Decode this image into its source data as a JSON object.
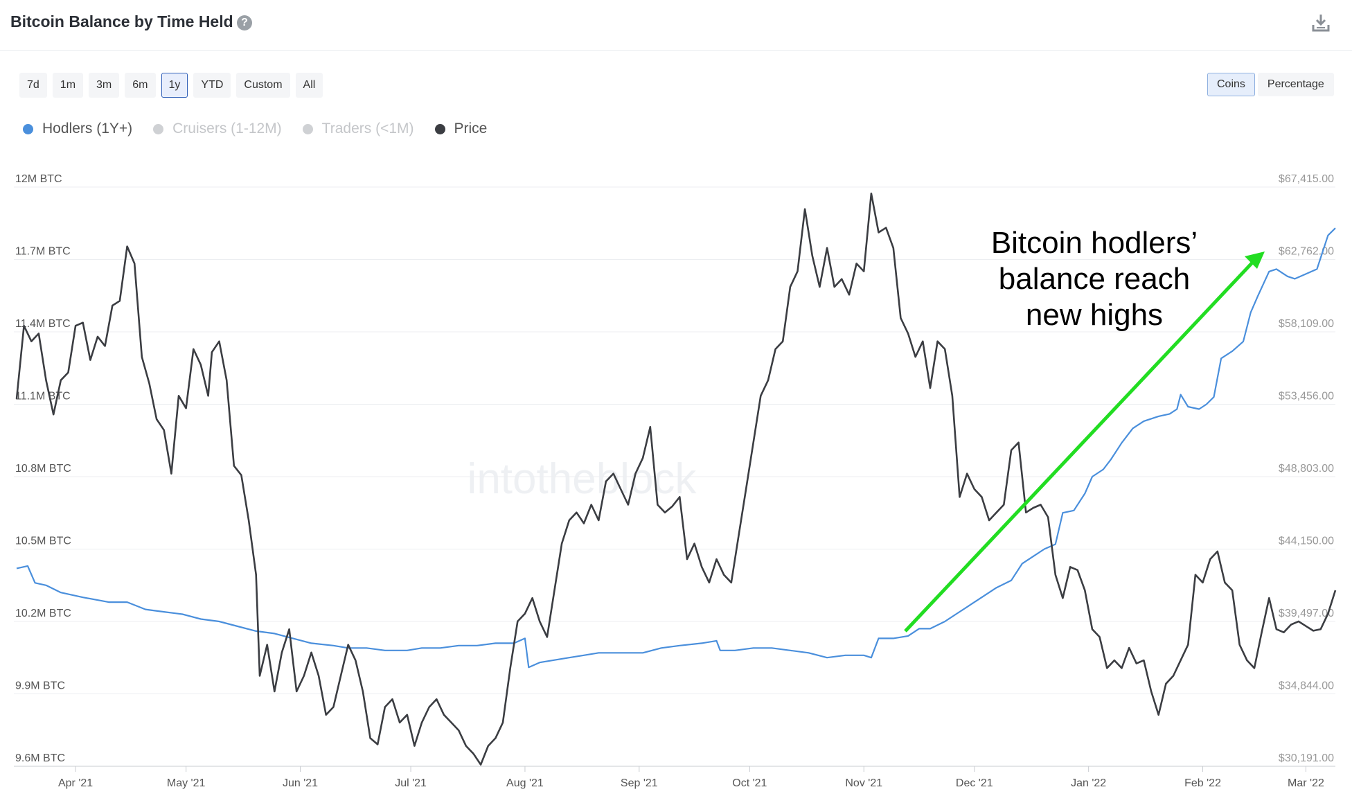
{
  "header": {
    "title": "Bitcoin Balance by Time Held",
    "help_icon": "question-circle-icon",
    "download_icon": "download-icon"
  },
  "ranges": [
    {
      "label": "7d",
      "active": false
    },
    {
      "label": "1m",
      "active": false
    },
    {
      "label": "3m",
      "active": false
    },
    {
      "label": "6m",
      "active": false
    },
    {
      "label": "1y",
      "active": true
    },
    {
      "label": "YTD",
      "active": false
    },
    {
      "label": "Custom",
      "active": false
    },
    {
      "label": "All",
      "active": false
    }
  ],
  "units": [
    {
      "label": "Coins",
      "active": true
    },
    {
      "label": "Percentage",
      "active": false
    }
  ],
  "legend": [
    {
      "label": "Hodlers (1Y+)",
      "color": "#4a8fdc",
      "active": true
    },
    {
      "label": "Cruisers (1-12M)",
      "color": "#cfd1d4",
      "active": false
    },
    {
      "label": "Traders (<1M)",
      "color": "#cfd1d4",
      "active": false
    },
    {
      "label": "Price",
      "color": "#3b3d42",
      "active": true
    }
  ],
  "watermark": "intotheblock",
  "chart_data": {
    "type": "line",
    "title": "Bitcoin Balance by Time Held",
    "left_axis": {
      "ticks": [
        "12M BTC",
        "11.7M BTC",
        "11.4M BTC",
        "11.1M BTC",
        "10.8M BTC",
        "10.5M BTC",
        "10.2M BTC",
        "9.9M BTC",
        "9.6M BTC"
      ],
      "range": [
        9.6,
        12.0
      ],
      "unit": "M BTC"
    },
    "right_axis": {
      "ticks": [
        "$67,415.00",
        "$62,762.00",
        "$58,109.00",
        "$53,456.00",
        "$48,803.00",
        "$44,150.00",
        "$39,497.00",
        "$34,844.00",
        "$30,191.00"
      ],
      "range": [
        30191,
        67415
      ]
    },
    "x_axis": {
      "ticks": [
        "Apr '21",
        "May '21",
        "Jun '21",
        "Jul '21",
        "Aug '21",
        "Sep '21",
        "Oct '21",
        "Nov '21",
        "Dec '21",
        "Jan '22",
        "Feb '22",
        "Mar '22"
      ],
      "tick_days": [
        16,
        46,
        77,
        107,
        138,
        169,
        199,
        230,
        260,
        291,
        322,
        350
      ],
      "start_date": "2021-03-16",
      "end_date": "2022-03-16"
    },
    "grid": true,
    "annotation": {
      "lines": [
        "Bitcoin hodlers’",
        "balance reach",
        "new highs"
      ],
      "arrow_color": "#22dd22"
    },
    "series": [
      {
        "name": "Hodlers (1Y+)",
        "axis": "left",
        "color": "#4a8fdc",
        "points": [
          [
            0,
            10.42
          ],
          [
            3,
            10.43
          ],
          [
            5,
            10.36
          ],
          [
            8,
            10.35
          ],
          [
            12,
            10.32
          ],
          [
            18,
            10.3
          ],
          [
            25,
            10.28
          ],
          [
            30,
            10.28
          ],
          [
            35,
            10.25
          ],
          [
            40,
            10.24
          ],
          [
            45,
            10.23
          ],
          [
            50,
            10.21
          ],
          [
            55,
            10.2
          ],
          [
            60,
            10.18
          ],
          [
            65,
            10.16
          ],
          [
            70,
            10.15
          ],
          [
            75,
            10.13
          ],
          [
            80,
            10.11
          ],
          [
            86,
            10.1
          ],
          [
            90,
            10.09
          ],
          [
            95,
            10.09
          ],
          [
            100,
            10.08
          ],
          [
            106,
            10.08
          ],
          [
            110,
            10.09
          ],
          [
            115,
            10.09
          ],
          [
            120,
            10.1
          ],
          [
            125,
            10.1
          ],
          [
            130,
            10.11
          ],
          [
            135,
            10.11
          ],
          [
            138,
            10.13
          ],
          [
            139,
            10.01
          ],
          [
            142,
            10.03
          ],
          [
            146,
            10.04
          ],
          [
            150,
            10.05
          ],
          [
            154,
            10.06
          ],
          [
            158,
            10.07
          ],
          [
            162,
            10.07
          ],
          [
            166,
            10.07
          ],
          [
            170,
            10.07
          ],
          [
            175,
            10.09
          ],
          [
            180,
            10.1
          ],
          [
            186,
            10.11
          ],
          [
            190,
            10.12
          ],
          [
            191,
            10.08
          ],
          [
            195,
            10.08
          ],
          [
            200,
            10.09
          ],
          [
            205,
            10.09
          ],
          [
            210,
            10.08
          ],
          [
            215,
            10.07
          ],
          [
            220,
            10.05
          ],
          [
            225,
            10.06
          ],
          [
            230,
            10.06
          ],
          [
            232,
            10.05
          ],
          [
            234,
            10.13
          ],
          [
            238,
            10.13
          ],
          [
            242,
            10.14
          ],
          [
            245,
            10.17
          ],
          [
            248,
            10.17
          ],
          [
            252,
            10.2
          ],
          [
            255,
            10.23
          ],
          [
            259,
            10.27
          ],
          [
            262,
            10.3
          ],
          [
            266,
            10.34
          ],
          [
            270,
            10.37
          ],
          [
            273,
            10.44
          ],
          [
            276,
            10.47
          ],
          [
            279,
            10.5
          ],
          [
            282,
            10.52
          ],
          [
            284,
            10.65
          ],
          [
            287,
            10.66
          ],
          [
            290,
            10.73
          ],
          [
            292,
            10.8
          ],
          [
            295,
            10.83
          ],
          [
            297,
            10.87
          ],
          [
            300,
            10.94
          ],
          [
            303,
            11.0
          ],
          [
            306,
            11.03
          ],
          [
            310,
            11.05
          ],
          [
            313,
            11.06
          ],
          [
            315,
            11.08
          ],
          [
            316,
            11.14
          ],
          [
            318,
            11.09
          ],
          [
            321,
            11.08
          ],
          [
            323,
            11.1
          ],
          [
            325,
            11.13
          ],
          [
            327,
            11.29
          ],
          [
            330,
            11.32
          ],
          [
            333,
            11.36
          ],
          [
            335,
            11.48
          ],
          [
            337,
            11.55
          ],
          [
            340,
            11.65
          ],
          [
            342,
            11.66
          ],
          [
            345,
            11.63
          ],
          [
            347,
            11.62
          ],
          [
            350,
            11.64
          ],
          [
            353,
            11.66
          ],
          [
            356,
            11.8
          ],
          [
            358,
            11.83
          ]
        ]
      },
      {
        "name": "Price",
        "axis": "right",
        "color": "#3b3d42",
        "points": [
          [
            0,
            53800
          ],
          [
            2,
            58500
          ],
          [
            4,
            57500
          ],
          [
            6,
            58000
          ],
          [
            8,
            55000
          ],
          [
            10,
            52800
          ],
          [
            12,
            55000
          ],
          [
            14,
            55500
          ],
          [
            16,
            58500
          ],
          [
            18,
            58700
          ],
          [
            20,
            56300
          ],
          [
            22,
            57800
          ],
          [
            24,
            57200
          ],
          [
            26,
            59800
          ],
          [
            28,
            60100
          ],
          [
            30,
            63600
          ],
          [
            32,
            62500
          ],
          [
            34,
            56500
          ],
          [
            36,
            54800
          ],
          [
            38,
            52500
          ],
          [
            40,
            51800
          ],
          [
            42,
            49000
          ],
          [
            44,
            54000
          ],
          [
            46,
            53200
          ],
          [
            48,
            57000
          ],
          [
            50,
            56000
          ],
          [
            52,
            54000
          ],
          [
            53,
            56800
          ],
          [
            55,
            57500
          ],
          [
            57,
            55000
          ],
          [
            59,
            49500
          ],
          [
            61,
            48900
          ],
          [
            63,
            46000
          ],
          [
            65,
            42500
          ],
          [
            66,
            36000
          ],
          [
            68,
            38000
          ],
          [
            70,
            35000
          ],
          [
            72,
            37500
          ],
          [
            74,
            39000
          ],
          [
            76,
            35000
          ],
          [
            78,
            36000
          ],
          [
            80,
            37500
          ],
          [
            82,
            36000
          ],
          [
            84,
            33500
          ],
          [
            86,
            34000
          ],
          [
            88,
            36000
          ],
          [
            90,
            38000
          ],
          [
            92,
            37000
          ],
          [
            94,
            35000
          ],
          [
            96,
            32000
          ],
          [
            98,
            31600
          ],
          [
            100,
            34000
          ],
          [
            102,
            34500
          ],
          [
            104,
            33000
          ],
          [
            106,
            33500
          ],
          [
            108,
            31500
          ],
          [
            110,
            33000
          ],
          [
            112,
            34000
          ],
          [
            114,
            34500
          ],
          [
            116,
            33500
          ],
          [
            118,
            33000
          ],
          [
            120,
            32500
          ],
          [
            122,
            31500
          ],
          [
            124,
            31000
          ],
          [
            126,
            30300
          ],
          [
            128,
            31500
          ],
          [
            130,
            32000
          ],
          [
            132,
            33000
          ],
          [
            134,
            36500
          ],
          [
            136,
            39500
          ],
          [
            138,
            40000
          ],
          [
            140,
            41000
          ],
          [
            142,
            39500
          ],
          [
            144,
            38500
          ],
          [
            146,
            41500
          ],
          [
            148,
            44500
          ],
          [
            150,
            46000
          ],
          [
            152,
            46500
          ],
          [
            154,
            45800
          ],
          [
            156,
            47000
          ],
          [
            158,
            46000
          ],
          [
            160,
            48500
          ],
          [
            162,
            49000
          ],
          [
            164,
            48000
          ],
          [
            166,
            47000
          ],
          [
            168,
            49000
          ],
          [
            170,
            50000
          ],
          [
            172,
            52000
          ],
          [
            174,
            47000
          ],
          [
            176,
            46500
          ],
          [
            178,
            46900
          ],
          [
            180,
            47500
          ],
          [
            182,
            43500
          ],
          [
            184,
            44500
          ],
          [
            186,
            43000
          ],
          [
            188,
            42000
          ],
          [
            190,
            43500
          ],
          [
            192,
            42500
          ],
          [
            194,
            42000
          ],
          [
            196,
            45000
          ],
          [
            198,
            48000
          ],
          [
            200,
            51000
          ],
          [
            202,
            54000
          ],
          [
            204,
            55000
          ],
          [
            206,
            57000
          ],
          [
            208,
            57500
          ],
          [
            210,
            61000
          ],
          [
            212,
            62000
          ],
          [
            214,
            66000
          ],
          [
            216,
            63000
          ],
          [
            218,
            61000
          ],
          [
            220,
            63500
          ],
          [
            222,
            61000
          ],
          [
            224,
            61500
          ],
          [
            226,
            60500
          ],
          [
            228,
            62500
          ],
          [
            230,
            62000
          ],
          [
            232,
            67000
          ],
          [
            234,
            64500
          ],
          [
            236,
            64800
          ],
          [
            238,
            63500
          ],
          [
            240,
            59000
          ],
          [
            242,
            58000
          ],
          [
            244,
            56500
          ],
          [
            246,
            57500
          ],
          [
            248,
            54500
          ],
          [
            250,
            57500
          ],
          [
            252,
            57000
          ],
          [
            254,
            54000
          ],
          [
            256,
            47500
          ],
          [
            258,
            49000
          ],
          [
            260,
            48000
          ],
          [
            262,
            47500
          ],
          [
            264,
            46000
          ],
          [
            266,
            46500
          ],
          [
            268,
            47000
          ],
          [
            270,
            50500
          ],
          [
            272,
            51000
          ],
          [
            274,
            46500
          ],
          [
            276,
            46800
          ],
          [
            278,
            47000
          ],
          [
            280,
            46200
          ],
          [
            282,
            42500
          ],
          [
            284,
            41000
          ],
          [
            286,
            43000
          ],
          [
            288,
            42800
          ],
          [
            290,
            41500
          ],
          [
            292,
            39000
          ],
          [
            294,
            38500
          ],
          [
            296,
            36500
          ],
          [
            298,
            37000
          ],
          [
            300,
            36500
          ],
          [
            302,
            37800
          ],
          [
            304,
            36800
          ],
          [
            306,
            37000
          ],
          [
            308,
            35000
          ],
          [
            310,
            33500
          ],
          [
            312,
            35500
          ],
          [
            314,
            36000
          ],
          [
            316,
            37000
          ],
          [
            318,
            38000
          ],
          [
            320,
            42500
          ],
          [
            322,
            42000
          ],
          [
            324,
            43500
          ],
          [
            326,
            44000
          ],
          [
            328,
            42000
          ],
          [
            330,
            41500
          ],
          [
            332,
            38000
          ],
          [
            334,
            37000
          ],
          [
            336,
            36500
          ],
          [
            338,
            38800
          ],
          [
            340,
            41000
          ],
          [
            342,
            39000
          ],
          [
            344,
            38800
          ],
          [
            346,
            39300
          ],
          [
            348,
            39500
          ],
          [
            350,
            39200
          ],
          [
            352,
            38900
          ],
          [
            354,
            39000
          ],
          [
            356,
            40000
          ],
          [
            358,
            41500
          ]
        ]
      }
    ]
  }
}
